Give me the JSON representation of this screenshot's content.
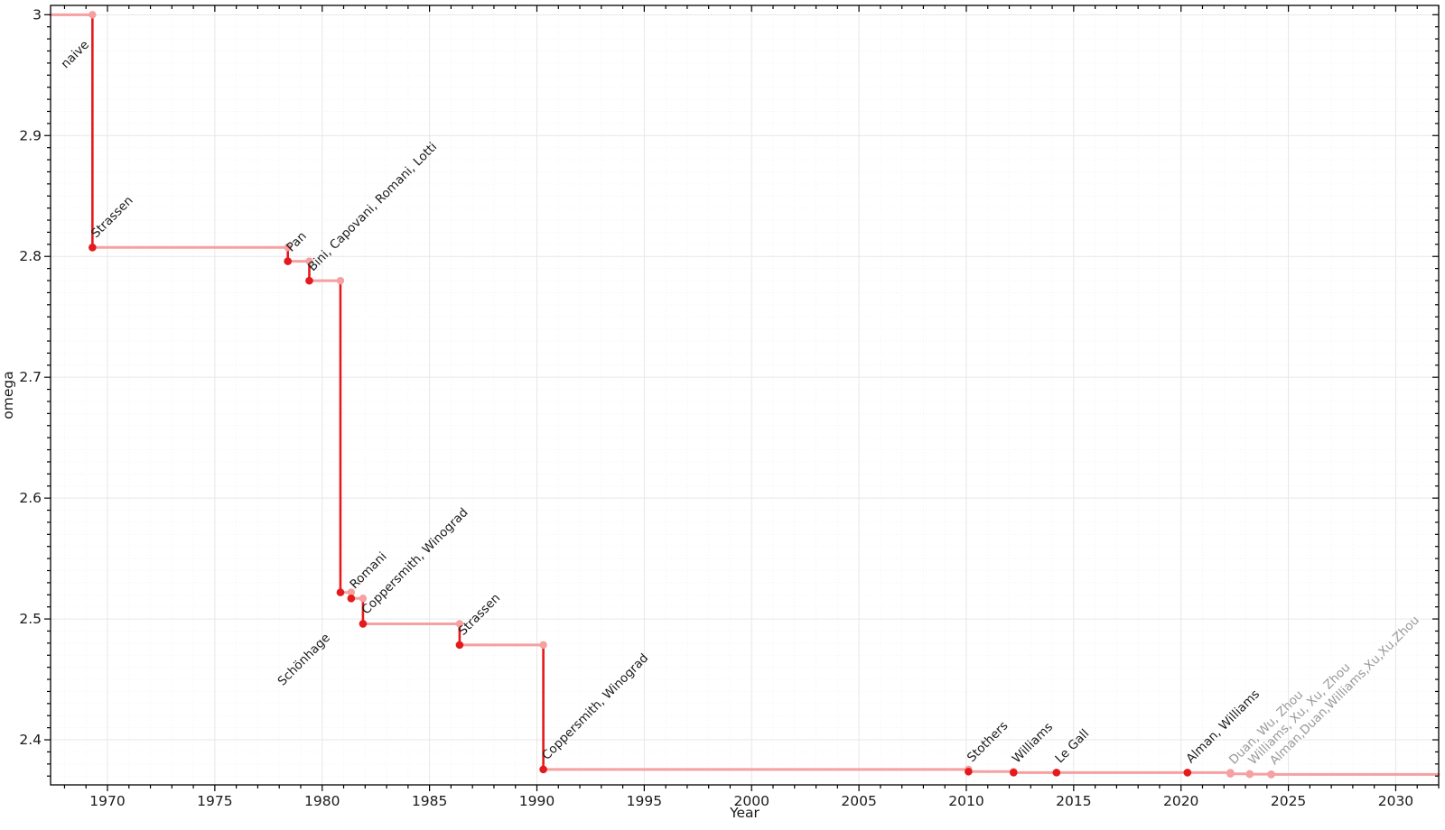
{
  "chart_data": {
    "type": "line",
    "subtype": "step",
    "title": "",
    "xlabel": "Year",
    "ylabel": "omega",
    "grid": true,
    "legend": false,
    "x_domain": [
      1967.35,
      2032
    ],
    "y_domain": [
      2.3627,
      3.0077
    ],
    "x_ticks_major": [
      1970,
      1975,
      1980,
      1985,
      1990,
      1995,
      2000,
      2005,
      2010,
      2015,
      2020,
      2025,
      2030
    ],
    "x_tick_labels": [
      "1970",
      "1975",
      "1980",
      "1985",
      "1990",
      "1995",
      "2000",
      "2005",
      "2010",
      "2015",
      "2020",
      "2025",
      "2030"
    ],
    "y_ticks_major": [
      2.4,
      2.5,
      2.6,
      2.7,
      2.8,
      2.9,
      3.0
    ],
    "y_tick_labels": [
      "2.4",
      "2.5",
      "2.6",
      "2.7",
      "2.8",
      "2.9",
      "3"
    ],
    "x_minor_step": 1,
    "y_minor_step": 0.01,
    "start": {
      "year": 1967.35,
      "omega": 3.0,
      "label": "naive",
      "label_dx": 17,
      "label_dy": 60
    },
    "end_year": 2032,
    "points": [
      {
        "year": 1969.3,
        "omega": 2.8074,
        "label": "Strassen",
        "style": "dark"
      },
      {
        "year": 1978.4,
        "omega": 2.796,
        "label": "Pan",
        "style": "dark"
      },
      {
        "year": 1979.4,
        "omega": 2.7799,
        "label": "Bini, Capovani, Romani, Lotti",
        "style": "dark"
      },
      {
        "year": 1980.85,
        "omega": 2.522,
        "label": "Schönhage",
        "style": "dark",
        "label_dx": -64,
        "label_dy": 104
      },
      {
        "year": 1981.35,
        "omega": 2.517,
        "label": "Romani",
        "style": "dark"
      },
      {
        "year": 1981.9,
        "omega": 2.496,
        "label": "Coppersmith, Winograd",
        "style": "dark"
      },
      {
        "year": 1986.4,
        "omega": 2.4785,
        "label": "Strassen",
        "style": "dark"
      },
      {
        "year": 1990.3,
        "omega": 2.3755,
        "label": "Coppersmith, Winograd",
        "style": "dark"
      },
      {
        "year": 2010.1,
        "omega": 2.3737,
        "label": "Stothers",
        "style": "dark"
      },
      {
        "year": 2012.2,
        "omega": 2.3729,
        "label": "Williams",
        "style": "dark"
      },
      {
        "year": 2014.2,
        "omega": 2.3728639,
        "label": "Le Gall",
        "style": "dark"
      },
      {
        "year": 2020.3,
        "omega": 2.3728596,
        "label": "Alman, Williams",
        "style": "dark"
      },
      {
        "year": 2022.3,
        "omega": 2.371866,
        "label": "Duan, Wu, Zhou",
        "style": "light"
      },
      {
        "year": 2023.2,
        "omega": 2.371552,
        "label": "Williams, Xu, Xu, Zhou",
        "style": "light"
      },
      {
        "year": 2024.2,
        "omega": 2.371339,
        "label": "Alman,Duan,Williams,Xu,Xu,Zhou",
        "style": "light"
      }
    ],
    "colors": {
      "step_dark": "#e41a1c",
      "step_light": "#f5a0a1",
      "label_dark": "#1a1a1a",
      "label_gray": "#999999",
      "grid_major": "#e7e7e7",
      "grid_minor": "#f0f0f0",
      "axis": "#000000",
      "tick_label": "#1a1a1a"
    }
  }
}
